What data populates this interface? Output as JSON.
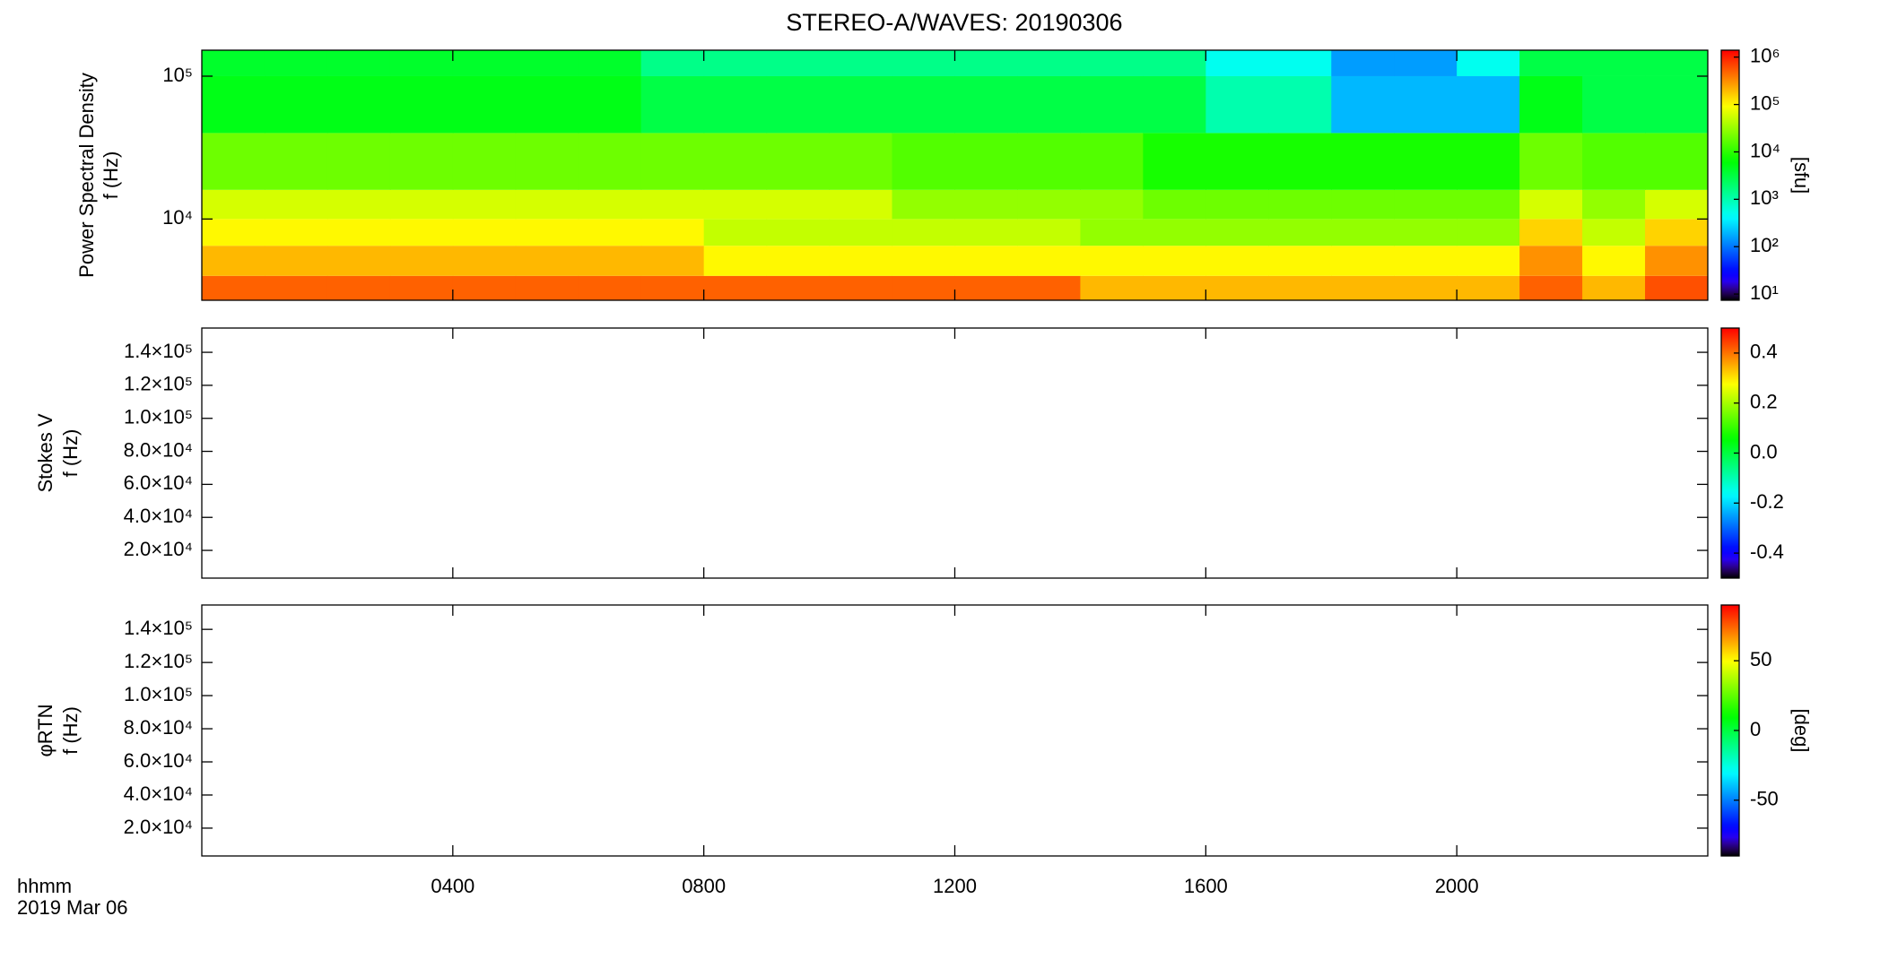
{
  "chart_data": [
    {
      "type": "heatmap",
      "title": "STEREO-A/WAVES: 20190306",
      "ylabel": [
        "Power Spectral Density",
        "f (Hz)"
      ],
      "xbins": [
        0,
        1,
        2,
        3,
        4,
        5,
        6,
        7,
        8,
        9,
        10,
        11,
        12,
        13,
        14,
        15,
        16,
        17,
        18,
        19,
        20,
        21,
        22,
        23,
        24
      ],
      "ybins": [
        2700,
        4000,
        6500,
        10000,
        16000,
        40000,
        100000,
        152000
      ],
      "z": [
        [
          500000,
          500000,
          500000,
          500000,
          500000,
          500000,
          500000,
          500000,
          500000,
          500000,
          500000,
          500000,
          500000,
          500000,
          200000,
          200000,
          200000,
          200000,
          200000,
          200000,
          200000,
          500000,
          200000,
          600000
        ],
        [
          200000,
          200000,
          200000,
          200000,
          200000,
          200000,
          200000,
          200000,
          100000,
          100000,
          100000,
          100000,
          100000,
          100000,
          100000,
          100000,
          100000,
          100000,
          100000,
          100000,
          100000,
          300000,
          100000,
          300000
        ],
        [
          100000,
          100000,
          100000,
          100000,
          100000,
          100000,
          100000,
          100000,
          50000,
          50000,
          50000,
          50000,
          50000,
          50000,
          30000,
          30000,
          30000,
          30000,
          30000,
          30000,
          30000,
          150000,
          50000,
          150000
        ],
        [
          60000,
          60000,
          60000,
          60000,
          60000,
          60000,
          60000,
          60000,
          60000,
          60000,
          60000,
          30000,
          30000,
          30000,
          30000,
          20000,
          20000,
          20000,
          20000,
          20000,
          20000,
          60000,
          30000,
          60000
        ],
        [
          20000,
          20000,
          20000,
          20000,
          20000,
          20000,
          20000,
          20000,
          20000,
          20000,
          20000,
          15000,
          15000,
          15000,
          15000,
          8000,
          8000,
          8000,
          8000,
          8000,
          8000,
          20000,
          15000,
          15000
        ],
        [
          5000,
          5000,
          5000,
          5000,
          5000,
          5000,
          5000,
          3000,
          3000,
          3000,
          3000,
          3000,
          3000,
          3000,
          3000,
          3000,
          1000,
          1000,
          200,
          200,
          200,
          5000,
          3000,
          3000
        ],
        [
          4000,
          4000,
          4000,
          4000,
          4000,
          4000,
          4000,
          1500,
          1500,
          1500,
          1500,
          1500,
          1500,
          1500,
          1500,
          1500,
          500,
          500,
          150,
          150,
          500,
          3000,
          3000,
          3000
        ]
      ],
      "ylim": [
        2700,
        152000
      ],
      "yscale": "log",
      "yticks": [
        {
          "value": 10000,
          "label": "10⁴"
        },
        {
          "value": 100000,
          "label": "10⁵"
        }
      ],
      "zlim": [
        7.4,
        1400000
      ],
      "zscale": "log",
      "zticks": [
        {
          "value": 10,
          "label": "10¹"
        },
        {
          "value": 100,
          "label": "10²"
        },
        {
          "value": 1000,
          "label": "10³"
        },
        {
          "value": 10000,
          "label": "10⁴"
        },
        {
          "value": 100000,
          "label": "10⁵"
        },
        {
          "value": 1000000,
          "label": "10⁶"
        }
      ],
      "zlabel": "[sfu]",
      "colormap": "rainbow"
    },
    {
      "type": "heatmap",
      "ylabel": [
        "Stokes V",
        "f (Hz)"
      ],
      "ylim": [
        3200,
        154700
      ],
      "yscale": "linear",
      "yticks": [
        {
          "value": 20000,
          "label": "2.0×10⁴"
        },
        {
          "value": 40000,
          "label": "4.0×10⁴"
        },
        {
          "value": 60000,
          "label": "6.0×10⁴"
        },
        {
          "value": 80000,
          "label": "8.0×10⁴"
        },
        {
          "value": 100000,
          "label": "1.0×10⁵"
        },
        {
          "value": 120000,
          "label": "1.2×10⁵"
        },
        {
          "value": 140000,
          "label": "1.4×10⁵"
        }
      ],
      "zlim": [
        -0.5,
        0.5
      ],
      "zscale": "linear",
      "zticks": [
        -0.4,
        -0.2,
        {
          "value": 0,
          "label": "0.0"
        },
        0.2,
        0.4
      ],
      "colormap": "rainbow"
    },
    {
      "type": "heatmap",
      "ylabel": [
        "φRTN",
        "f (Hz)"
      ],
      "ylim": [
        3200,
        154700
      ],
      "yscale": "linear",
      "yticks": [
        {
          "value": 20000,
          "label": "2.0×10⁴"
        },
        {
          "value": 40000,
          "label": "4.0×10⁴"
        },
        {
          "value": 60000,
          "label": "6.0×10⁴"
        },
        {
          "value": 80000,
          "label": "8.0×10⁴"
        },
        {
          "value": 100000,
          "label": "1.0×10⁵"
        },
        {
          "value": 120000,
          "label": "1.2×10⁵"
        },
        {
          "value": 140000,
          "label": "1.4×10⁵"
        }
      ],
      "zlim": [
        -90,
        90
      ],
      "zscale": "linear",
      "zticks": [
        -50,
        0,
        50
      ],
      "zlabel": "[deg]",
      "colormap": "rainbow",
      "xlim": [
        0,
        24
      ],
      "xticks": [
        {
          "value": 4,
          "label": "0400"
        },
        {
          "value": 8,
          "label": "0800"
        },
        {
          "value": 12,
          "label": "1200"
        },
        {
          "value": 16,
          "label": "1600"
        },
        {
          "value": 20,
          "label": "2000"
        }
      ],
      "xlabel": "hhmm",
      "date": "2019 Mar 06"
    }
  ]
}
